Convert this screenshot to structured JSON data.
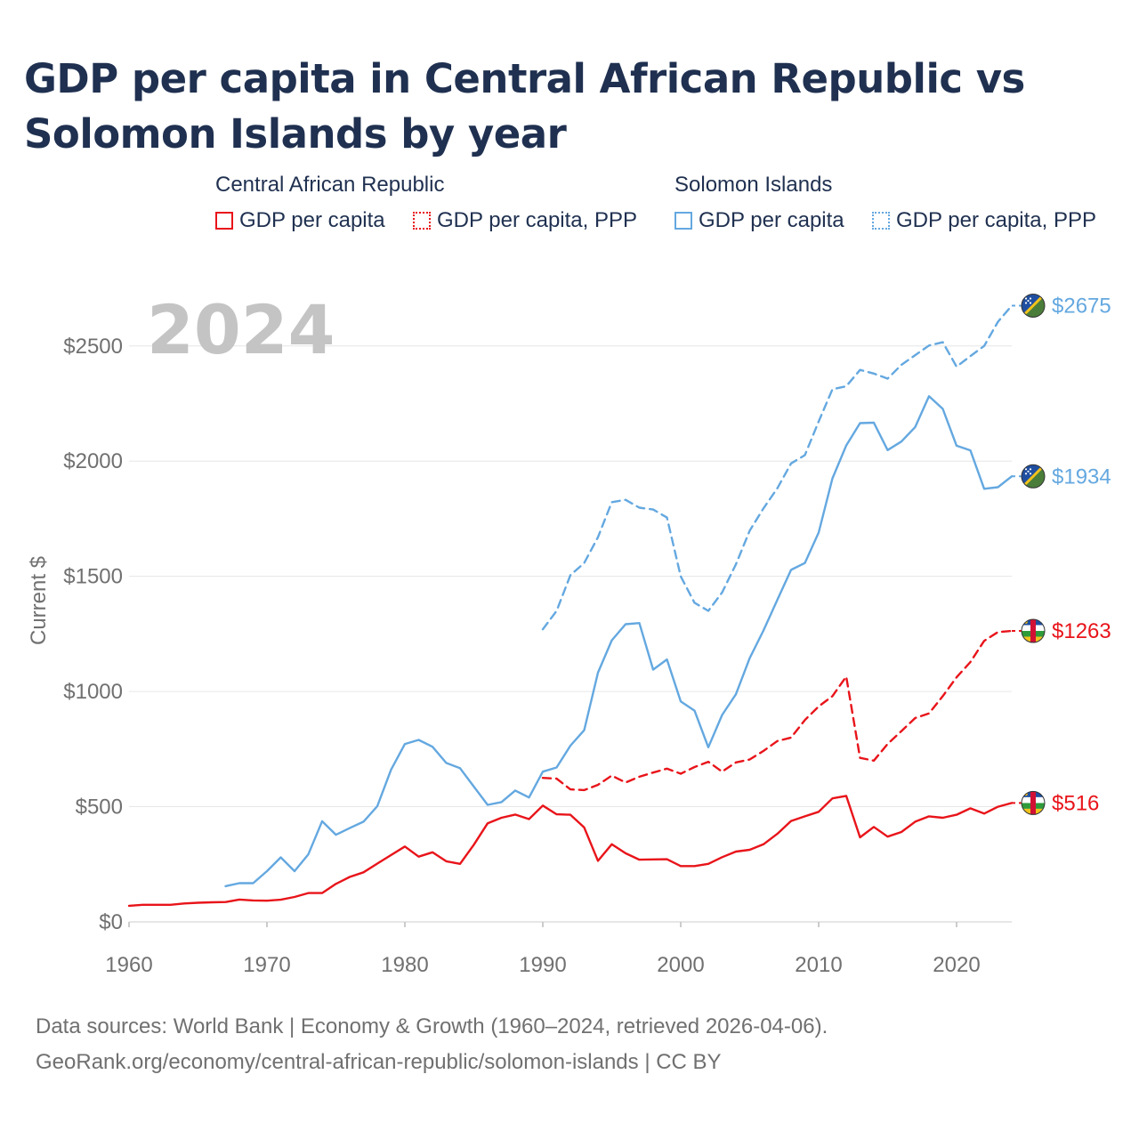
{
  "title": "GDP per capita in Central African Republic vs Solomon Islands by year",
  "legend": {
    "groups": [
      {
        "title": "Central African Republic",
        "items": [
          "GDP per capita",
          "GDP per capita, PPP"
        ]
      },
      {
        "title": "Solomon Islands",
        "items": [
          "GDP per capita",
          "GDP per capita, PPP"
        ]
      }
    ]
  },
  "year_label": "2024",
  "source_line1": "Data sources: World Bank | Economy & Growth (1960–2024, retrieved 2026-04-06).",
  "source_line2": "GeoRank.org/economy/central-african-republic/solomon-islands | CC BY",
  "colors": {
    "car": "#e8141a",
    "sol": "#64a8e0",
    "grid": "#e6e6e6",
    "axis": "#707070"
  },
  "chart_data": {
    "type": "line",
    "title": "GDP per capita in Central African Republic vs Solomon Islands by year",
    "xlabel": "",
    "ylabel": "Current $",
    "xlim": [
      1960,
      2024
    ],
    "ylim": [
      0,
      2700
    ],
    "x_ticks": [
      1960,
      1970,
      1980,
      1990,
      2000,
      2010,
      2020
    ],
    "y_ticks": [
      0,
      500,
      1000,
      1500,
      2000,
      2500
    ],
    "y_tick_labels": [
      "$0",
      "$500",
      "$1000",
      "$1500",
      "$2000",
      "$2500"
    ],
    "series": [
      {
        "name": "Central African Republic GDP per capita",
        "color": "#e8141a",
        "dash": false,
        "end_label": "$516",
        "x": [
          1960,
          1961,
          1962,
          1963,
          1964,
          1965,
          1966,
          1967,
          1968,
          1969,
          1970,
          1971,
          1972,
          1973,
          1974,
          1975,
          1976,
          1977,
          1978,
          1979,
          1980,
          1981,
          1982,
          1983,
          1984,
          1985,
          1986,
          1987,
          1988,
          1989,
          1990,
          1991,
          1992,
          1993,
          1994,
          1995,
          1996,
          1997,
          1998,
          1999,
          2000,
          2001,
          2002,
          2003,
          2004,
          2005,
          2006,
          2007,
          2008,
          2009,
          2010,
          2011,
          2012,
          2013,
          2014,
          2015,
          2016,
          2017,
          2018,
          2019,
          2020,
          2021,
          2022,
          2023,
          2024
        ],
        "values": [
          70,
          74,
          74,
          74,
          80,
          83,
          85,
          86,
          97,
          93,
          92,
          96,
          108,
          125,
          125,
          165,
          195,
          215,
          253,
          290,
          327,
          283,
          302,
          263,
          252,
          335,
          428,
          452,
          466,
          446,
          505,
          467,
          465,
          410,
          265,
          337,
          298,
          270,
          271,
          272,
          242,
          242,
          252,
          281,
          305,
          313,
          337,
          382,
          438,
          458,
          478,
          536,
          547,
          367,
          412,
          370,
          390,
          435,
          458,
          452,
          465,
          493,
          470,
          500,
          516
        ]
      },
      {
        "name": "Central African Republic GDP per capita, PPP",
        "color": "#e8141a",
        "dash": true,
        "end_label": "$1263",
        "x": [
          1990,
          1991,
          1992,
          1993,
          1994,
          1995,
          1996,
          1997,
          1998,
          1999,
          2000,
          2001,
          2002,
          2003,
          2004,
          2005,
          2006,
          2007,
          2008,
          2009,
          2010,
          2011,
          2012,
          2013,
          2014,
          2015,
          2016,
          2017,
          2018,
          2019,
          2020,
          2021,
          2022,
          2023,
          2024
        ],
        "values": [
          625,
          622,
          575,
          572,
          595,
          635,
          605,
          630,
          648,
          665,
          643,
          672,
          695,
          652,
          692,
          705,
          742,
          785,
          800,
          876,
          935,
          980,
          1065,
          712,
          700,
          772,
          828,
          885,
          905,
          980,
          1062,
          1128,
          1220,
          1258,
          1263
        ]
      },
      {
        "name": "Solomon Islands GDP per capita",
        "color": "#64a8e0",
        "dash": false,
        "end_label": "$1934",
        "x": [
          1967,
          1968,
          1969,
          1970,
          1971,
          1972,
          1973,
          1974,
          1975,
          1976,
          1977,
          1978,
          1979,
          1980,
          1981,
          1982,
          1983,
          1984,
          1985,
          1986,
          1987,
          1988,
          1989,
          1990,
          1991,
          1992,
          1993,
          1994,
          1995,
          1996,
          1997,
          1998,
          1999,
          2000,
          2001,
          2002,
          2003,
          2004,
          2005,
          2006,
          2007,
          2008,
          2009,
          2010,
          2011,
          2012,
          2013,
          2014,
          2015,
          2016,
          2017,
          2018,
          2019,
          2020,
          2021,
          2022,
          2023,
          2024
        ],
        "values": [
          155,
          168,
          168,
          220,
          280,
          220,
          293,
          437,
          378,
          407,
          435,
          502,
          661,
          772,
          790,
          760,
          690,
          667,
          587,
          508,
          520,
          570,
          540,
          652,
          670,
          765,
          832,
          1082,
          1222,
          1292,
          1297,
          1095,
          1139,
          957,
          917,
          758,
          898,
          988,
          1145,
          1265,
          1397,
          1528,
          1558,
          1690,
          1925,
          2068,
          2165,
          2167,
          2048,
          2085,
          2148,
          2282,
          2227,
          2067,
          2047,
          1880,
          1887,
          1934
        ]
      },
      {
        "name": "Solomon Islands GDP per capita, PPP",
        "color": "#64a8e0",
        "dash": true,
        "end_label": "$2675",
        "x": [
          1990,
          1991,
          1992,
          1993,
          1994,
          1995,
          1996,
          1997,
          1998,
          1999,
          2000,
          2001,
          2002,
          2003,
          2004,
          2005,
          2006,
          2007,
          2008,
          2009,
          2010,
          2011,
          2012,
          2013,
          2014,
          2015,
          2016,
          2017,
          2018,
          2019,
          2020,
          2021,
          2022,
          2023,
          2024
        ],
        "values": [
          1270,
          1350,
          1505,
          1558,
          1670,
          1822,
          1832,
          1798,
          1790,
          1755,
          1500,
          1385,
          1350,
          1430,
          1552,
          1698,
          1795,
          1882,
          1990,
          2026,
          2172,
          2312,
          2325,
          2396,
          2380,
          2358,
          2418,
          2460,
          2502,
          2516,
          2410,
          2456,
          2500,
          2605,
          2675
        ]
      }
    ]
  }
}
